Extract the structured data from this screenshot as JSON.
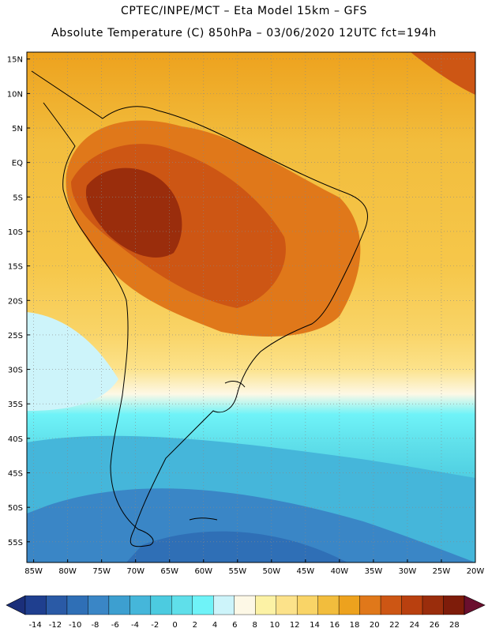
{
  "header": {
    "line1": "CPTEC/INPE/MCT –  Eta Model 15km – GFS",
    "line2": "Absolute Temperature (C) 850hPa – 03/06/2020 12UTC fct=194h"
  },
  "map": {
    "lat_labels": [
      "15N",
      "10N",
      "5N",
      "EQ",
      "5S",
      "10S",
      "15S",
      "20S",
      "25S",
      "30S",
      "35S",
      "40S",
      "45S",
      "50S",
      "55S"
    ],
    "lon_labels": [
      "85W",
      "80W",
      "75W",
      "70W",
      "65W",
      "60W",
      "55W",
      "50W",
      "45W",
      "40W",
      "35W",
      "30W",
      "25W",
      "20W"
    ],
    "lat_values": [
      15,
      10,
      5,
      0,
      -5,
      -10,
      -15,
      -20,
      -25,
      -30,
      -35,
      -40,
      -45,
      -50,
      -55
    ],
    "lon_values": [
      -85,
      -80,
      -75,
      -70,
      -65,
      -60,
      -55,
      -50,
      -45,
      -40,
      -35,
      -30,
      -25,
      -20
    ],
    "lat_range": [
      -58,
      16
    ],
    "lon_range": [
      -86,
      -20
    ]
  },
  "colorbar": {
    "unit": "C",
    "labels": [
      "-14",
      "-12",
      "-10",
      "-8",
      "-6",
      "-4",
      "-2",
      "0",
      "2",
      "4",
      "6",
      "8",
      "10",
      "12",
      "14",
      "16",
      "18",
      "20",
      "22",
      "24",
      "26",
      "28"
    ],
    "colors": [
      "#1f3f8f",
      "#2a5aa6",
      "#2f6fb6",
      "#3a86c6",
      "#3d9fd0",
      "#45b6da",
      "#4ccbe0",
      "#5fdfea",
      "#6ff3f8",
      "#cdf4fa",
      "#fdf8e6",
      "#fcf2a5",
      "#fce28a",
      "#f9d467",
      "#f2bd3d",
      "#eda21e",
      "#e0781a",
      "#cd5614",
      "#b9400f",
      "#9a2d0c",
      "#7e1c0a"
    ],
    "below_color": "#1b2f7a",
    "above_color": "#6a0f2e"
  }
}
